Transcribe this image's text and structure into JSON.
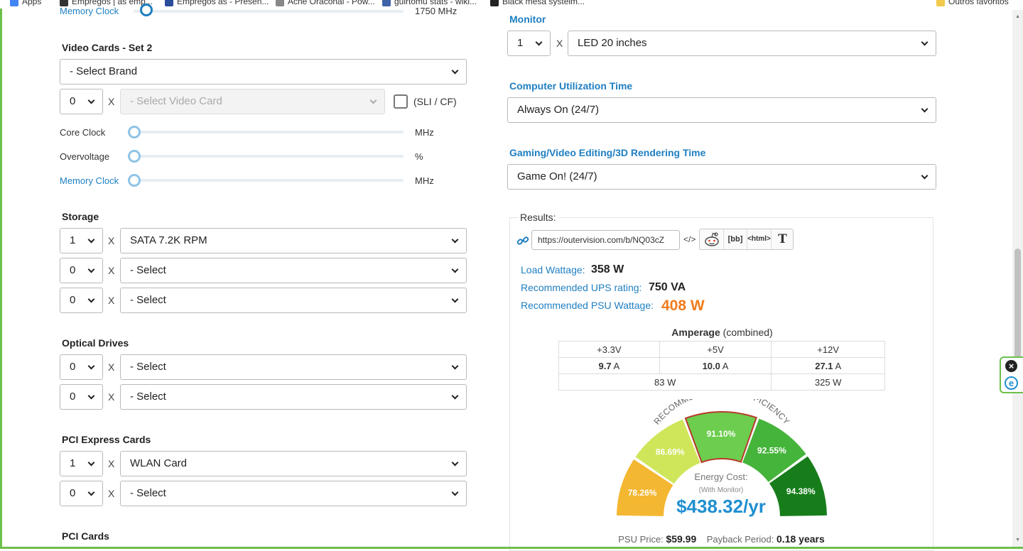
{
  "bookmarks_bar": {
    "items": [
      {
        "label": "Apps"
      },
      {
        "label": "Empregos | as emp..."
      },
      {
        "label": "Empregos as - Presen..."
      },
      {
        "label": "Ache Oraconal - Pow..."
      },
      {
        "label": "guirtomu stats - wiki..."
      },
      {
        "label": "Black mesa systeim..."
      }
    ],
    "other_label": "Outros favoritos"
  },
  "left": {
    "top_slider": {
      "label": "Memory Clock",
      "value_text": "1750 MHz"
    },
    "video_set2": {
      "heading": "Video Cards - Set 2",
      "brand": "- Select Brand",
      "qty": "0",
      "times": "X",
      "card": "- Select Video Card",
      "sli_label": "(SLI / CF)",
      "sliders": [
        {
          "label": "Core Clock",
          "unit": "MHz",
          "level": 0
        },
        {
          "label": "Overvoltage",
          "unit": "%",
          "level": 0
        },
        {
          "label": "Memory Clock",
          "unit": "MHz",
          "level": 0
        }
      ]
    },
    "storage": {
      "heading": "Storage",
      "rows": [
        {
          "qty": "1",
          "times": "X",
          "item": "SATA 7.2K RPM"
        },
        {
          "qty": "0",
          "times": "X",
          "item": "- Select"
        },
        {
          "qty": "0",
          "times": "X",
          "item": "- Select"
        }
      ]
    },
    "optical": {
      "heading": "Optical Drives",
      "rows": [
        {
          "qty": "0",
          "times": "X",
          "item": "- Select"
        },
        {
          "qty": "0",
          "times": "X",
          "item": "- Select"
        }
      ]
    },
    "pcie": {
      "heading": "PCI Express Cards",
      "rows": [
        {
          "qty": "1",
          "times": "X",
          "item": "WLAN Card"
        },
        {
          "qty": "0",
          "times": "X",
          "item": "- Select"
        }
      ]
    },
    "pci": {
      "heading": "PCI Cards"
    }
  },
  "right": {
    "monitor": {
      "heading": "Monitor",
      "qty": "1",
      "times": "X",
      "item": "LED 20 inches"
    },
    "utilization": {
      "heading": "Computer Utilization Time",
      "value": "Always On (24/7)"
    },
    "gaming": {
      "heading": "Gaming/Video Editing/3D Rendering Time",
      "value": "Game On! (24/7)"
    },
    "results": {
      "legend": "Results:",
      "url": "https://outervision.com/b/NQ03cZ",
      "code_label": "</>",
      "share": {
        "bb": "[bb]",
        "html": "<html>",
        "text": "T"
      },
      "load_label": "Load Wattage:",
      "load_value": "358 W",
      "ups_label": "Recommended UPS rating:",
      "ups_value": "750 VA",
      "psu_label": "Recommended PSU Wattage:",
      "psu_value": "408 W",
      "amperage": {
        "title_bold": "Amperage",
        "title_rest": " (combined)",
        "rails": [
          "+3.3V",
          "+5V",
          "+12V"
        ],
        "amps": [
          "9.7",
          "10.0",
          "27.1"
        ],
        "unit": "A",
        "watts_combined": "83 W",
        "watts_12v": "325 W"
      },
      "efficiency": {
        "title": "RECOMMENDED PSU EFFICIENCY",
        "segments": [
          {
            "label": "78.26%",
            "color": "#f4b731"
          },
          {
            "label": "86.69%",
            "color": "#cfe65a"
          },
          {
            "label": "91.10%",
            "color": "#6ccd4e",
            "selected": true
          },
          {
            "label": "92.55%",
            "color": "#45b43a"
          },
          {
            "label": "94.38%",
            "color": "#177d1b"
          }
        ],
        "selected_border": "#b83a2a"
      },
      "energy": {
        "label": "Energy Cost:",
        "sub": "(With Monitor)",
        "value": "$438.32/yr"
      },
      "psu_price_label": "PSU Price:",
      "psu_price": "$59.99",
      "payback_label": "Payback Period:",
      "payback": "0.18 years"
    }
  },
  "colors": {
    "accent": "#1f7fc2",
    "frame": "#6cc04a",
    "psu_value": "#f07c1c"
  }
}
